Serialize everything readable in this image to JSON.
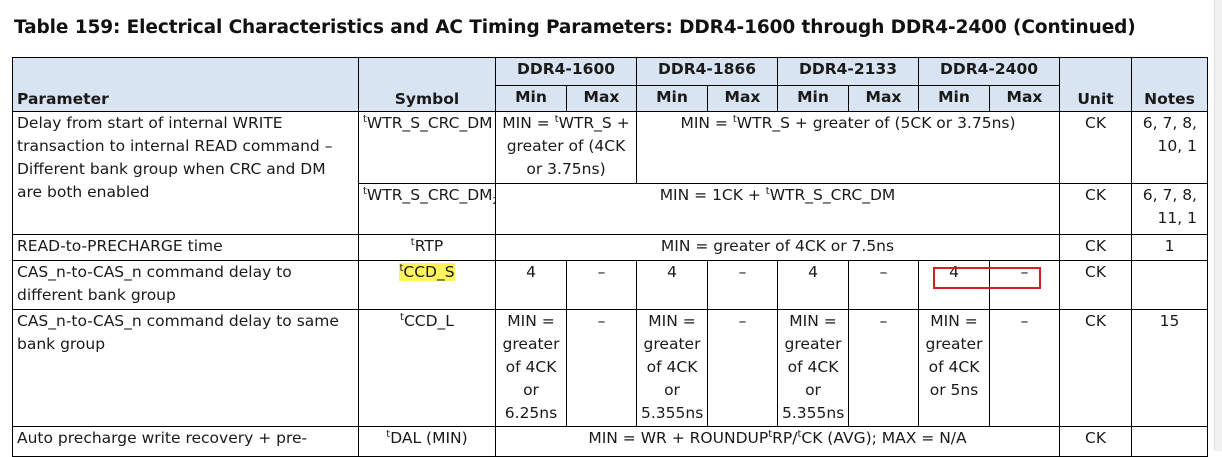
{
  "title": "Table 159: Electrical Characteristics and AC Timing Parameters: DDR4-1600 through DDR4-2400 (Continued)",
  "header": {
    "parameter": "Parameter",
    "symbol": "Symbol",
    "unit": "Unit",
    "notes": "Notes",
    "speed_grades": [
      "DDR4-1600",
      "DDR4-1866",
      "DDR4-2133",
      "DDR4-2400"
    ],
    "min": "Min",
    "max": "Max"
  },
  "rows": {
    "wtr_crc_dm": {
      "parameter": "Delay from start of internal WRITE transaction to internal READ command – Different bank group when CRC and DM are both enabled",
      "symbol_prefix": "t",
      "symbol": "WTR_S_CRC_DM",
      "ddr1600_line1": "MIN = ",
      "ddr1600_sup": "t",
      "ddr1600_line2": "WTR_S + greater of (4CK or 3.75ns)",
      "rest_prefix": "MIN = ",
      "rest_sup": "t",
      "rest_value": "WTR_S + greater of (5CK or 3.75ns)",
      "unit": "CK",
      "notes": "6, 7, 8, 10, 1"
    },
    "wtr_crc_dm2": {
      "symbol_prefix": "t",
      "symbol": "WTR_S_CRC_DM",
      "symbol_sub": "2",
      "value_prefix": "MIN = 1CK + ",
      "value_sup": "t",
      "value": "WTR_S_CRC_DM",
      "unit": "CK",
      "notes": "6, 7, 8, 11, 1"
    },
    "rtp": {
      "parameter": "READ-to-PRECHARGE time",
      "symbol_prefix": "t",
      "symbol": "RTP",
      "value": "MIN = greater of 4CK or 7.5ns",
      "unit": "CK",
      "notes": "1"
    },
    "ccd_s": {
      "parameter": "CAS_n-to-CAS_n command delay to different bank group",
      "symbol_prefix": "t",
      "symbol": "CCD_S",
      "values": [
        "4",
        "–",
        "4",
        "–",
        "4",
        "–",
        "4",
        "–"
      ],
      "unit": "CK",
      "notes": ""
    },
    "ccd_l": {
      "parameter": "CAS_n-to-CAS_n command delay to same bank group",
      "symbol_prefix": "t",
      "symbol": "CCD_L",
      "ddr1600_min": "MIN = greater of 4CK or 6.25ns",
      "ddr1866_min": "MIN = greater of 4CK or 5.355ns",
      "ddr2133_min": "MIN = greater of 4CK or 5.355ns",
      "ddr2400_min": "MIN = greater of 4CK or 5ns",
      "max": "–",
      "unit": "CK",
      "notes": "15"
    },
    "dal": {
      "parameter": "Auto precharge write recovery + pre-",
      "symbol_prefix": "t",
      "symbol": "DAL (MIN)",
      "value_prefix": "MIN = WR + ROUNDUP",
      "value_sup1": "t",
      "value_mid": "RP/",
      "value_sup2": "t",
      "value_end": "CK (AVG); MAX = N/A",
      "unit": "CK"
    }
  },
  "colors": {
    "header_bg": "#d8e4f1",
    "highlight": "#fff45c",
    "annotation_box": "#d81e1e"
  }
}
